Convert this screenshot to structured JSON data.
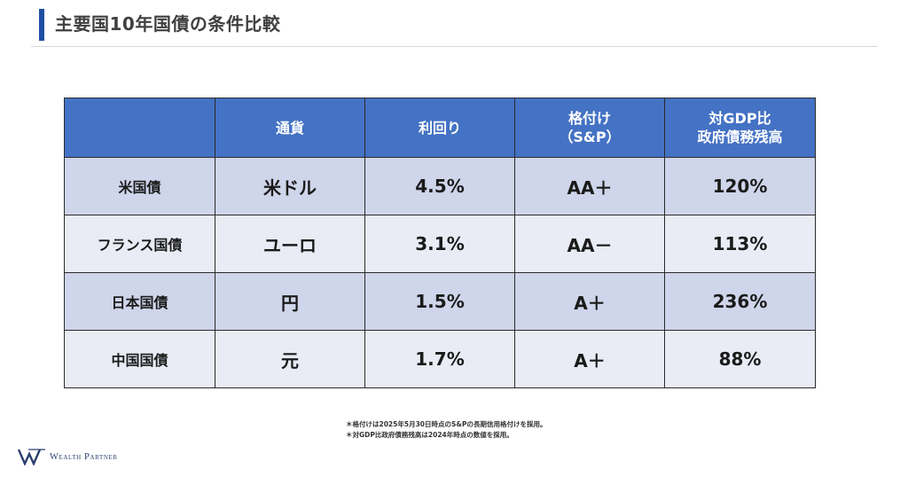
{
  "slide": {
    "title": "主要国10年国債の条件比較"
  },
  "table": {
    "headers": [
      "",
      "通貨",
      "利回り",
      "格付け\n（S&P）",
      "対GDP比\n政府債務残高"
    ],
    "header_lines": {
      "rating": [
        "格付け",
        "（S&P）"
      ],
      "debt": [
        "対GDP比",
        "政府債務残高"
      ]
    },
    "rows": [
      {
        "name": "米国債",
        "currency": "米ドル",
        "yield": "4.5%",
        "rating": "AA＋",
        "debt": "120%"
      },
      {
        "name": "フランス国債",
        "currency": "ユーロ",
        "yield": "3.1%",
        "rating": "AA－",
        "debt": "113%"
      },
      {
        "name": "日本国債",
        "currency": "円",
        "yield": "1.5%",
        "rating": "A＋",
        "debt": "236%"
      },
      {
        "name": "中国国債",
        "currency": "元",
        "yield": "1.7%",
        "rating": "A＋",
        "debt": "88%"
      }
    ]
  },
  "notes": [
    "＊格付けは2025年5月30日時点のS&Pの長期信用格付けを採用。",
    "＊対GDP比政府債務残高は2024年時点の数値を採用。"
  ],
  "logo": {
    "text": "Wealth Partner",
    "icon": "wealth-partner-logo-icon"
  },
  "colors": {
    "accent": "#1f4fa3",
    "header_bg": "#4472c4",
    "row_odd": "#cfd5ea",
    "row_even": "#e9ebf5"
  }
}
